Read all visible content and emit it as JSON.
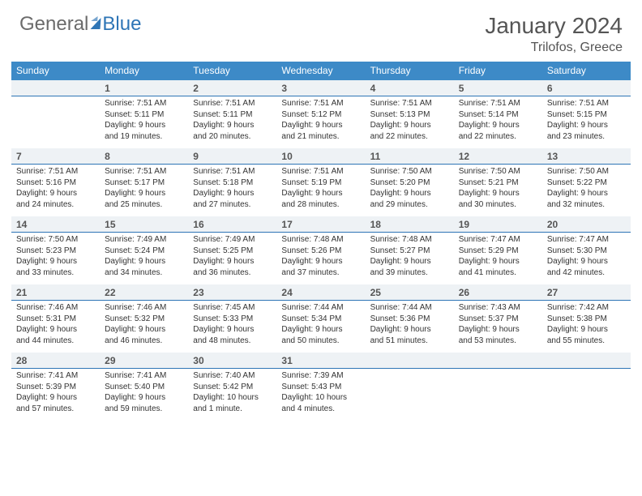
{
  "brand": {
    "part1": "General",
    "part2": "Blue"
  },
  "title": "January 2024",
  "location": "Trilofos, Greece",
  "colors": {
    "header_bar": "#3d8ac7",
    "accent_line": "#2e75b6",
    "daynum_bg": "#eef2f5",
    "text": "#333333",
    "muted": "#555555",
    "bg": "#ffffff"
  },
  "days_of_week": [
    "Sunday",
    "Monday",
    "Tuesday",
    "Wednesday",
    "Thursday",
    "Friday",
    "Saturday"
  ],
  "weeks": [
    {
      "nums": [
        "",
        "1",
        "2",
        "3",
        "4",
        "5",
        "6"
      ],
      "cells": [
        null,
        {
          "sunrise": "Sunrise: 7:51 AM",
          "sunset": "Sunset: 5:11 PM",
          "d1": "Daylight: 9 hours",
          "d2": "and 19 minutes."
        },
        {
          "sunrise": "Sunrise: 7:51 AM",
          "sunset": "Sunset: 5:11 PM",
          "d1": "Daylight: 9 hours",
          "d2": "and 20 minutes."
        },
        {
          "sunrise": "Sunrise: 7:51 AM",
          "sunset": "Sunset: 5:12 PM",
          "d1": "Daylight: 9 hours",
          "d2": "and 21 minutes."
        },
        {
          "sunrise": "Sunrise: 7:51 AM",
          "sunset": "Sunset: 5:13 PM",
          "d1": "Daylight: 9 hours",
          "d2": "and 22 minutes."
        },
        {
          "sunrise": "Sunrise: 7:51 AM",
          "sunset": "Sunset: 5:14 PM",
          "d1": "Daylight: 9 hours",
          "d2": "and 22 minutes."
        },
        {
          "sunrise": "Sunrise: 7:51 AM",
          "sunset": "Sunset: 5:15 PM",
          "d1": "Daylight: 9 hours",
          "d2": "and 23 minutes."
        }
      ]
    },
    {
      "nums": [
        "7",
        "8",
        "9",
        "10",
        "11",
        "12",
        "13"
      ],
      "cells": [
        {
          "sunrise": "Sunrise: 7:51 AM",
          "sunset": "Sunset: 5:16 PM",
          "d1": "Daylight: 9 hours",
          "d2": "and 24 minutes."
        },
        {
          "sunrise": "Sunrise: 7:51 AM",
          "sunset": "Sunset: 5:17 PM",
          "d1": "Daylight: 9 hours",
          "d2": "and 25 minutes."
        },
        {
          "sunrise": "Sunrise: 7:51 AM",
          "sunset": "Sunset: 5:18 PM",
          "d1": "Daylight: 9 hours",
          "d2": "and 27 minutes."
        },
        {
          "sunrise": "Sunrise: 7:51 AM",
          "sunset": "Sunset: 5:19 PM",
          "d1": "Daylight: 9 hours",
          "d2": "and 28 minutes."
        },
        {
          "sunrise": "Sunrise: 7:50 AM",
          "sunset": "Sunset: 5:20 PM",
          "d1": "Daylight: 9 hours",
          "d2": "and 29 minutes."
        },
        {
          "sunrise": "Sunrise: 7:50 AM",
          "sunset": "Sunset: 5:21 PM",
          "d1": "Daylight: 9 hours",
          "d2": "and 30 minutes."
        },
        {
          "sunrise": "Sunrise: 7:50 AM",
          "sunset": "Sunset: 5:22 PM",
          "d1": "Daylight: 9 hours",
          "d2": "and 32 minutes."
        }
      ]
    },
    {
      "nums": [
        "14",
        "15",
        "16",
        "17",
        "18",
        "19",
        "20"
      ],
      "cells": [
        {
          "sunrise": "Sunrise: 7:50 AM",
          "sunset": "Sunset: 5:23 PM",
          "d1": "Daylight: 9 hours",
          "d2": "and 33 minutes."
        },
        {
          "sunrise": "Sunrise: 7:49 AM",
          "sunset": "Sunset: 5:24 PM",
          "d1": "Daylight: 9 hours",
          "d2": "and 34 minutes."
        },
        {
          "sunrise": "Sunrise: 7:49 AM",
          "sunset": "Sunset: 5:25 PM",
          "d1": "Daylight: 9 hours",
          "d2": "and 36 minutes."
        },
        {
          "sunrise": "Sunrise: 7:48 AM",
          "sunset": "Sunset: 5:26 PM",
          "d1": "Daylight: 9 hours",
          "d2": "and 37 minutes."
        },
        {
          "sunrise": "Sunrise: 7:48 AM",
          "sunset": "Sunset: 5:27 PM",
          "d1": "Daylight: 9 hours",
          "d2": "and 39 minutes."
        },
        {
          "sunrise": "Sunrise: 7:47 AM",
          "sunset": "Sunset: 5:29 PM",
          "d1": "Daylight: 9 hours",
          "d2": "and 41 minutes."
        },
        {
          "sunrise": "Sunrise: 7:47 AM",
          "sunset": "Sunset: 5:30 PM",
          "d1": "Daylight: 9 hours",
          "d2": "and 42 minutes."
        }
      ]
    },
    {
      "nums": [
        "21",
        "22",
        "23",
        "24",
        "25",
        "26",
        "27"
      ],
      "cells": [
        {
          "sunrise": "Sunrise: 7:46 AM",
          "sunset": "Sunset: 5:31 PM",
          "d1": "Daylight: 9 hours",
          "d2": "and 44 minutes."
        },
        {
          "sunrise": "Sunrise: 7:46 AM",
          "sunset": "Sunset: 5:32 PM",
          "d1": "Daylight: 9 hours",
          "d2": "and 46 minutes."
        },
        {
          "sunrise": "Sunrise: 7:45 AM",
          "sunset": "Sunset: 5:33 PM",
          "d1": "Daylight: 9 hours",
          "d2": "and 48 minutes."
        },
        {
          "sunrise": "Sunrise: 7:44 AM",
          "sunset": "Sunset: 5:34 PM",
          "d1": "Daylight: 9 hours",
          "d2": "and 50 minutes."
        },
        {
          "sunrise": "Sunrise: 7:44 AM",
          "sunset": "Sunset: 5:36 PM",
          "d1": "Daylight: 9 hours",
          "d2": "and 51 minutes."
        },
        {
          "sunrise": "Sunrise: 7:43 AM",
          "sunset": "Sunset: 5:37 PM",
          "d1": "Daylight: 9 hours",
          "d2": "and 53 minutes."
        },
        {
          "sunrise": "Sunrise: 7:42 AM",
          "sunset": "Sunset: 5:38 PM",
          "d1": "Daylight: 9 hours",
          "d2": "and 55 minutes."
        }
      ]
    },
    {
      "nums": [
        "28",
        "29",
        "30",
        "31",
        "",
        "",
        ""
      ],
      "cells": [
        {
          "sunrise": "Sunrise: 7:41 AM",
          "sunset": "Sunset: 5:39 PM",
          "d1": "Daylight: 9 hours",
          "d2": "and 57 minutes."
        },
        {
          "sunrise": "Sunrise: 7:41 AM",
          "sunset": "Sunset: 5:40 PM",
          "d1": "Daylight: 9 hours",
          "d2": "and 59 minutes."
        },
        {
          "sunrise": "Sunrise: 7:40 AM",
          "sunset": "Sunset: 5:42 PM",
          "d1": "Daylight: 10 hours",
          "d2": "and 1 minute."
        },
        {
          "sunrise": "Sunrise: 7:39 AM",
          "sunset": "Sunset: 5:43 PM",
          "d1": "Daylight: 10 hours",
          "d2": "and 4 minutes."
        },
        null,
        null,
        null
      ]
    }
  ]
}
